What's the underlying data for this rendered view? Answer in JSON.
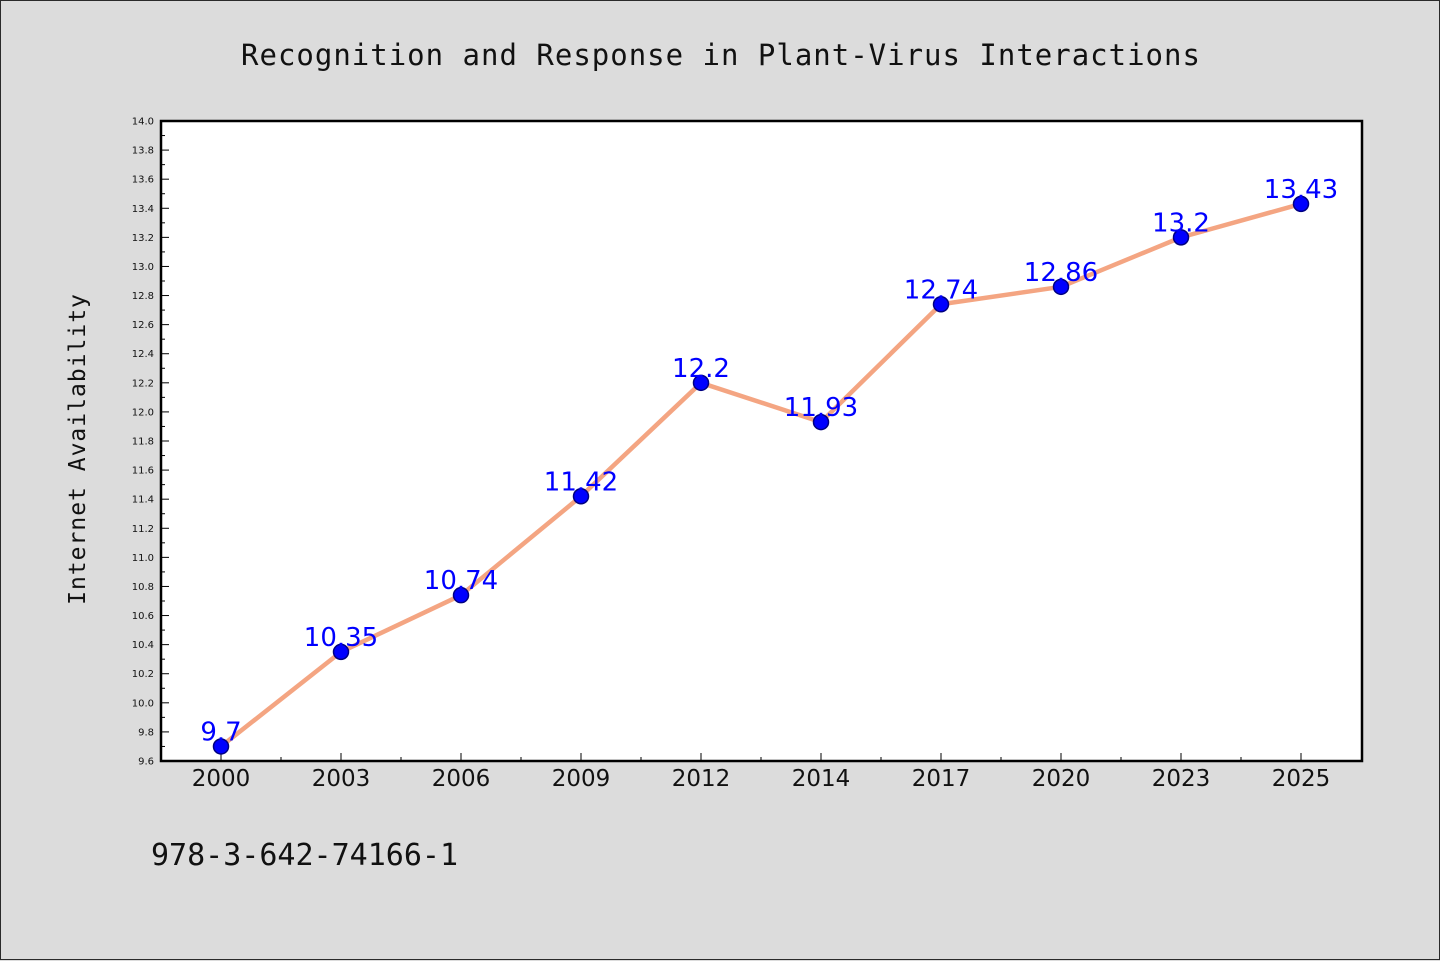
{
  "chart_data": {
    "type": "line",
    "title": "Recognition and Response in Plant-Virus Interactions",
    "xlabel": "",
    "ylabel": "Internet Availability",
    "categories": [
      "2000",
      "2003",
      "2006",
      "2009",
      "2012",
      "2014",
      "2017",
      "2020",
      "2023",
      "2025"
    ],
    "series": [
      {
        "values": [
          9.7,
          10.35,
          10.74,
          11.42,
          12.2,
          11.93,
          12.74,
          12.86,
          13.2,
          13.43
        ],
        "labels": [
          "9.7",
          "10.35",
          "10.74",
          "11.42",
          "12.2",
          "11.93",
          "12.74",
          "12.86",
          "13.2",
          "13.43"
        ],
        "line_color": "#f4a582",
        "marker_color": "#0000ff",
        "marker_edge_color": "#000080",
        "label_color": "#0000ff"
      }
    ],
    "ylim": [
      9.6,
      14.0
    ],
    "y_ticks": [
      "9.6",
      "9.8",
      "10.0",
      "10.2",
      "10.4",
      "10.6",
      "10.8",
      "11.0",
      "11.2",
      "11.4",
      "11.6",
      "11.8",
      "12.0",
      "12.2",
      "12.4",
      "12.6",
      "12.8",
      "13.0",
      "13.2",
      "13.4",
      "13.6",
      "13.8",
      "14.0"
    ],
    "grid": false,
    "legend": "none"
  },
  "footer": {
    "code": "978-3-642-74166-1"
  },
  "colors": {
    "background": "#dcdcdc",
    "plot_background": "#ffffff"
  }
}
